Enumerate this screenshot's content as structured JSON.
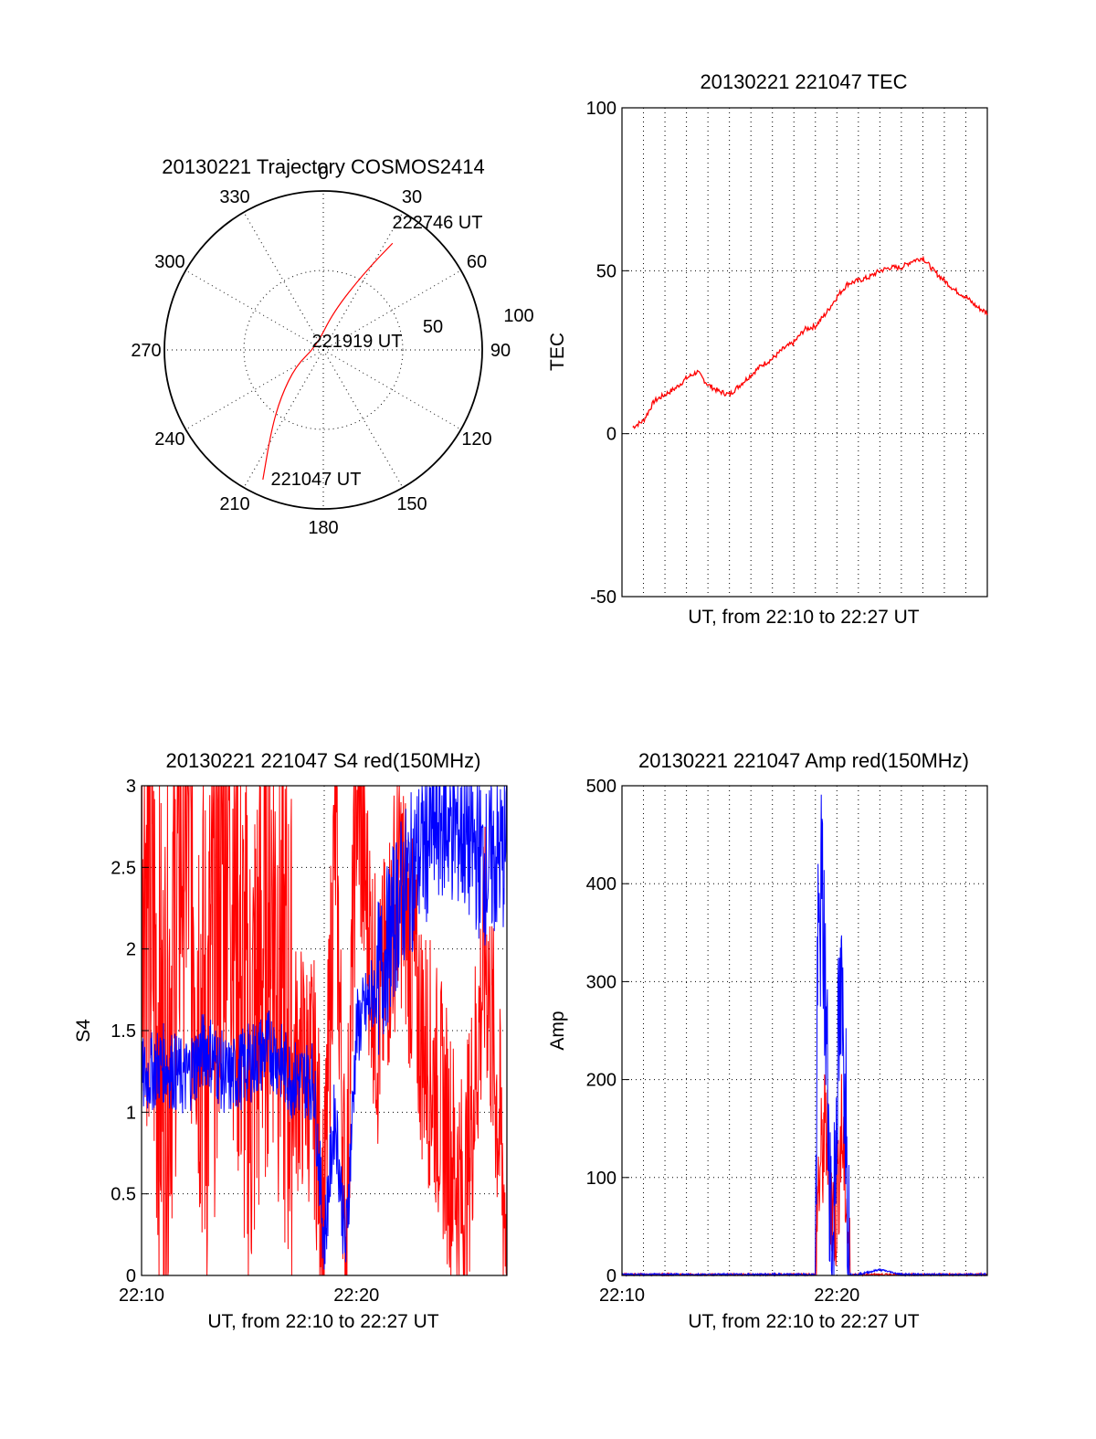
{
  "colors": {
    "red": "#ff0000",
    "blue": "#0000ff",
    "axis": "#000000"
  },
  "chart_data": [
    {
      "type": "polar",
      "title": "20130221 Trajectory COSMOS2414",
      "azimuth_labels": [
        "0",
        "30",
        "60",
        "90",
        "120",
        "150",
        "180",
        "210",
        "240",
        "270",
        "300",
        "330"
      ],
      "azimuths": [
        0,
        30,
        60,
        90,
        120,
        150,
        180,
        210,
        240,
        270,
        300,
        330
      ],
      "radial_labels": [
        "50",
        "100"
      ],
      "trajectory": {
        "start_label": "221047 UT",
        "mid_label": "221919 UT",
        "end_label": "222746 UT",
        "points": [
          [
            205,
            90
          ],
          [
            213,
            60
          ],
          [
            222,
            40
          ],
          [
            240,
            20
          ],
          [
            300,
            5
          ],
          [
            15,
            25
          ],
          [
            28,
            55
          ],
          [
            33,
            80
          ]
        ]
      }
    },
    {
      "type": "line",
      "title": "20130221 221047 TEC",
      "xlabel": "UT, from 22:10 to 22:27 UT",
      "ylabel": "TEC",
      "yticks": [
        "100",
        "50",
        "0",
        "-50"
      ],
      "ylim": [
        -50,
        100
      ],
      "xlim": [
        0,
        17
      ],
      "grid": true,
      "series": [
        {
          "x": [
            0,
            0.5,
            1,
            1.5,
            2,
            2.5,
            3,
            3.5,
            4,
            4.5,
            5,
            5.5,
            6,
            6.5,
            7,
            7.5,
            8,
            8.5,
            9,
            9.5,
            10,
            10.5,
            11,
            11.5,
            12,
            12.5,
            13,
            13.5,
            14,
            14.5,
            15,
            15.5,
            16,
            16.5,
            17
          ],
          "values": [
            0,
            2,
            4,
            10,
            12,
            14,
            17,
            19,
            15,
            13,
            12,
            15,
            18,
            21,
            23,
            26,
            28,
            32,
            33,
            37,
            42,
            46,
            47,
            48,
            50,
            51,
            51,
            53,
            54,
            50,
            47,
            44,
            42,
            39,
            37
          ]
        }
      ]
    },
    {
      "type": "line",
      "title": "20130221 221047 S4 red(150MHz)",
      "xlabel": "UT, from 22:10 to 22:27 UT",
      "ylabel": "S4",
      "xticks": [
        "22:10",
        "22:20"
      ],
      "yticks": [
        "0",
        "0.5",
        "1",
        "1.5",
        "2",
        "2.5",
        "3"
      ],
      "ylim": [
        0,
        3
      ],
      "xlim": [
        0,
        17
      ],
      "grid": true,
      "series": [
        {
          "color": "red",
          "x": [
            0,
            1,
            2,
            3,
            4,
            5,
            6,
            7,
            8,
            8.5,
            9,
            9.5,
            10,
            11,
            12,
            13,
            14,
            15,
            16,
            17
          ],
          "values": [
            3,
            1.2,
            3,
            1.4,
            3,
            1.2,
            2.5,
            1.3,
            1.2,
            0.3,
            2.8,
            0.2,
            3,
            1.5,
            2.5,
            1.5,
            1.0,
            0.4,
            2.0,
            0.3
          ]
        },
        {
          "color": "blue",
          "x": [
            0,
            1,
            2,
            3,
            4,
            5,
            6,
            7,
            8,
            8.5,
            9,
            9.5,
            10,
            11,
            12,
            13,
            14,
            15,
            16,
            17
          ],
          "values": [
            1.2,
            1.3,
            1.2,
            1.4,
            1.2,
            1.3,
            1.4,
            1.2,
            1.2,
            0.2,
            1.0,
            0.15,
            1.5,
            1.8,
            2.3,
            2.6,
            2.8,
            2.7,
            2.5,
            2.6
          ]
        }
      ]
    },
    {
      "type": "line",
      "title": "20130221 221047 Amp red(150MHz)",
      "xlabel": "UT, from 22:10 to 22:27 UT",
      "ylabel": "Amp",
      "xticks": [
        "22:10",
        "22:20"
      ],
      "yticks": [
        "0",
        "100",
        "200",
        "300",
        "400",
        "500"
      ],
      "ylim": [
        0,
        500
      ],
      "xlim": [
        0,
        17
      ],
      "grid": true,
      "series": [
        {
          "color": "red",
          "x": [
            0,
            9,
            9.1,
            9.3,
            9.5,
            9.8,
            10,
            10.2,
            10.4,
            10.6,
            11,
            17
          ],
          "values": [
            0,
            0,
            80,
            120,
            150,
            60,
            70,
            150,
            100,
            0,
            0,
            0
          ]
        },
        {
          "color": "blue",
          "x": [
            0,
            9,
            9.1,
            9.3,
            9.5,
            9.8,
            10,
            10.2,
            10.4,
            10.6,
            11,
            12,
            13,
            17
          ],
          "values": [
            0,
            0,
            300,
            400,
            250,
            0,
            200,
            270,
            200,
            0,
            0,
            5,
            0,
            0
          ]
        }
      ]
    }
  ]
}
